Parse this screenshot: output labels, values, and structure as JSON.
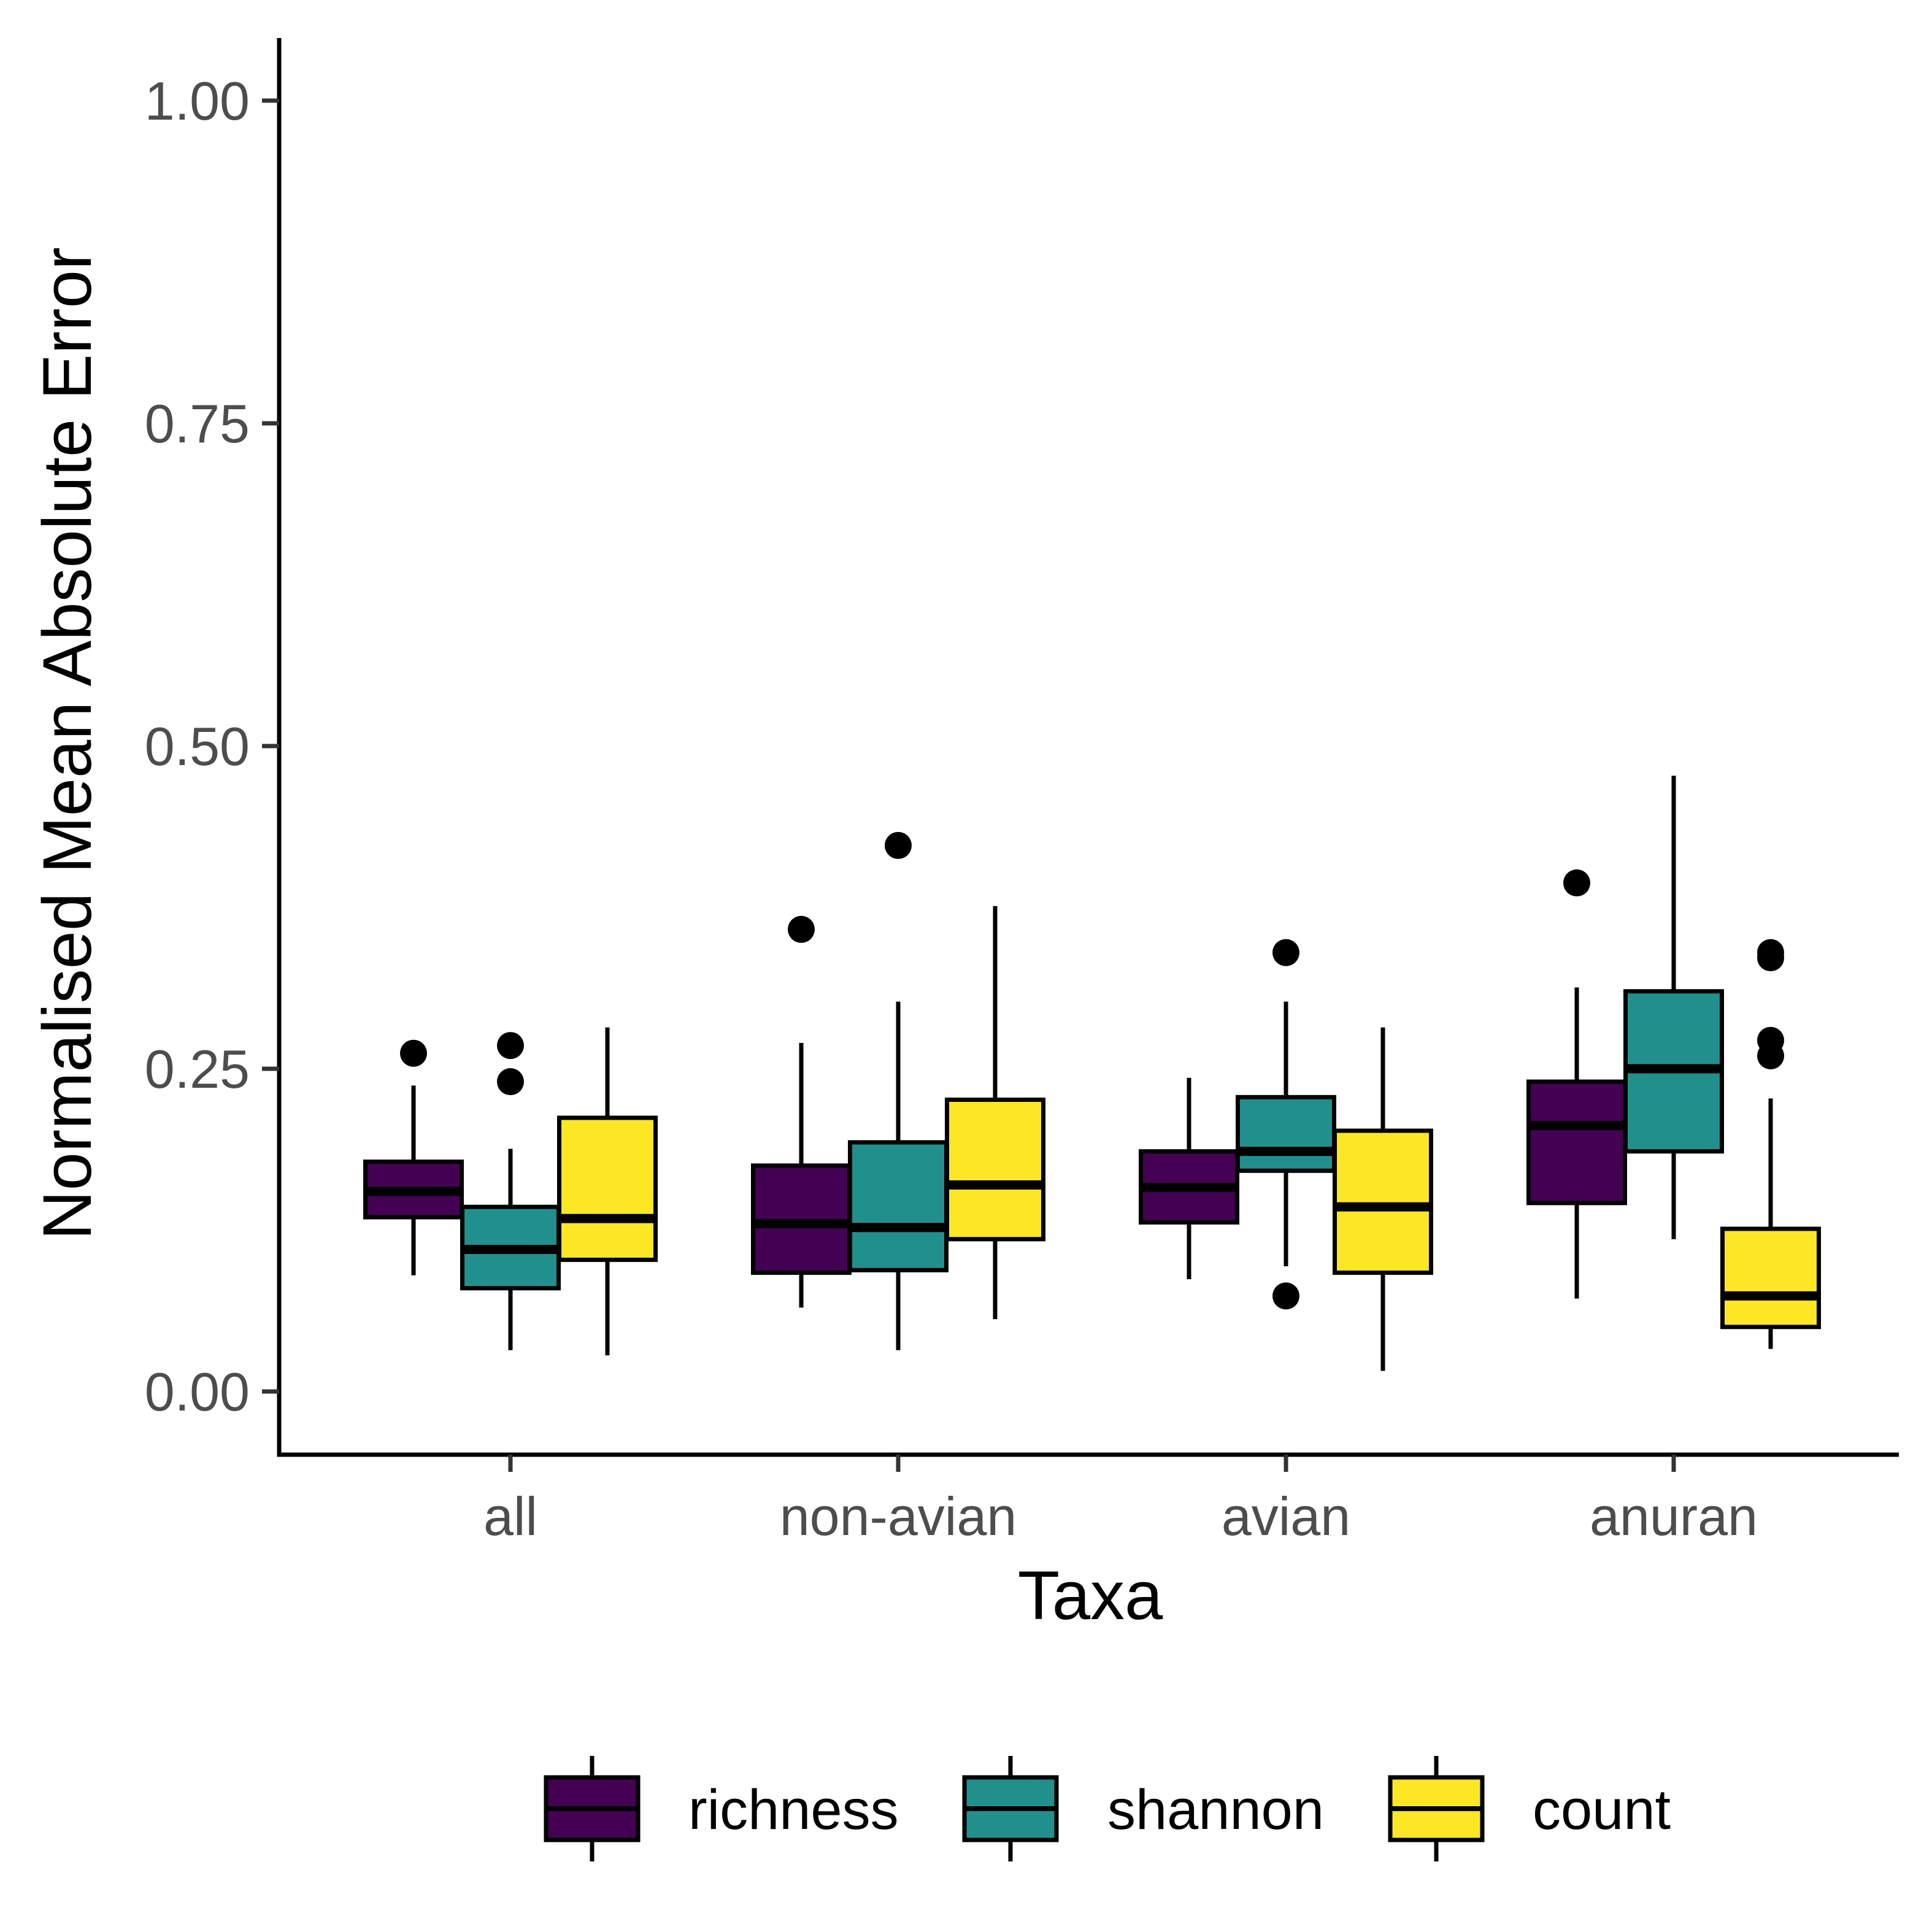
{
  "chart_data": {
    "type": "box",
    "title": "",
    "xlabel": "Taxa",
    "ylabel": "Normalised Mean Absolute Error",
    "ylim": [
      -0.05,
      1.05
    ],
    "yticks": [
      "0.00",
      "0.25",
      "0.50",
      "0.75",
      "1.00"
    ],
    "categories": [
      "all",
      "non-avian",
      "avian",
      "anuran"
    ],
    "legend_position": "bottom",
    "grid": false,
    "series": [
      {
        "name": "richness",
        "color": "#440154",
        "boxes": [
          {
            "min": 0.09,
            "q1": 0.135,
            "median": 0.155,
            "q3": 0.178,
            "max": 0.237,
            "outliers": [
              0.262
            ]
          },
          {
            "min": 0.065,
            "q1": 0.092,
            "median": 0.13,
            "q3": 0.175,
            "max": 0.27,
            "outliers": [
              0.358
            ]
          },
          {
            "min": 0.087,
            "q1": 0.131,
            "median": 0.158,
            "q3": 0.186,
            "max": 0.243,
            "outliers": []
          },
          {
            "min": 0.072,
            "q1": 0.146,
            "median": 0.206,
            "q3": 0.24,
            "max": 0.313,
            "outliers": [
              0.394
            ]
          }
        ]
      },
      {
        "name": "shannon",
        "color": "#21908C",
        "boxes": [
          {
            "min": 0.032,
            "q1": 0.08,
            "median": 0.11,
            "q3": 0.143,
            "max": 0.188,
            "outliers": [
              0.24,
              0.268
            ]
          },
          {
            "min": 0.032,
            "q1": 0.094,
            "median": 0.127,
            "q3": 0.193,
            "max": 0.302,
            "outliers": [
              0.423
            ]
          },
          {
            "min": 0.097,
            "q1": 0.171,
            "median": 0.186,
            "q3": 0.228,
            "max": 0.302,
            "outliers": [
              0.34,
              0.074
            ]
          },
          {
            "min": 0.118,
            "q1": 0.186,
            "median": 0.25,
            "q3": 0.31,
            "max": 0.477,
            "outliers": []
          }
        ]
      },
      {
        "name": "count",
        "color": "#FDE725",
        "boxes": [
          {
            "min": 0.028,
            "q1": 0.102,
            "median": 0.134,
            "q3": 0.212,
            "max": 0.282,
            "outliers": []
          },
          {
            "min": 0.056,
            "q1": 0.118,
            "median": 0.16,
            "q3": 0.226,
            "max": 0.376,
            "outliers": []
          },
          {
            "min": 0.016,
            "q1": 0.092,
            "median": 0.143,
            "q3": 0.202,
            "max": 0.282,
            "outliers": []
          },
          {
            "min": 0.033,
            "q1": 0.05,
            "median": 0.074,
            "q3": 0.126,
            "max": 0.227,
            "outliers": [
              0.26,
              0.272,
              0.336,
              0.34
            ]
          }
        ]
      }
    ]
  }
}
